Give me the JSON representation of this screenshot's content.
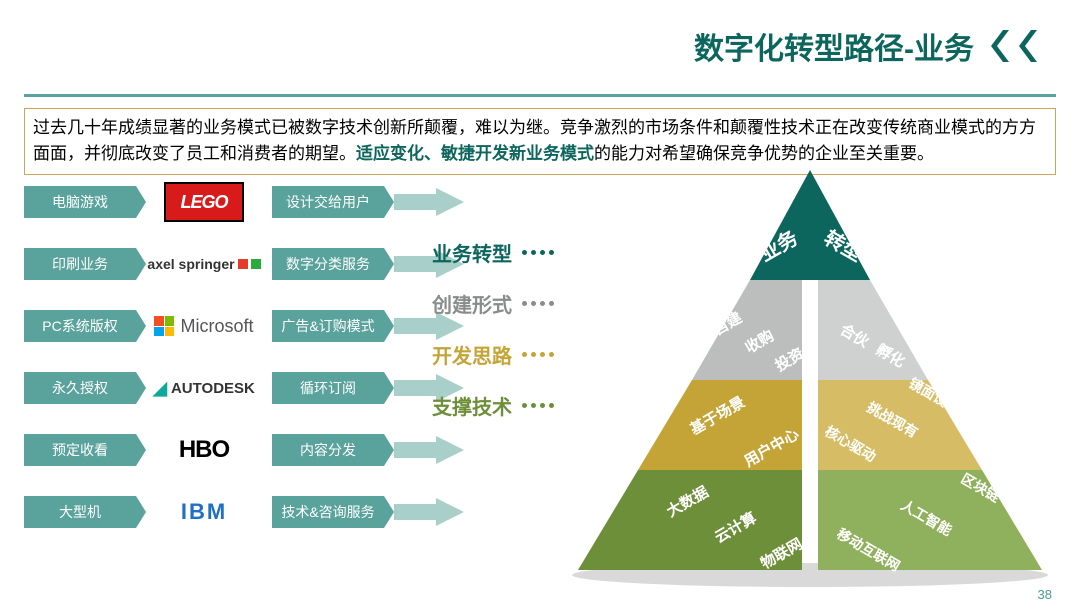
{
  "colors": {
    "teal": "#0c665d",
    "tag_bg": "#5aa39c",
    "arrow_bg": "#a9cfca",
    "hr": "#5aa39c",
    "intro_border": "#c7a85a",
    "intro_hl": "#0c665d",
    "pyr_l0": "#0c665d",
    "pyr_l1_a": "#bcbebe",
    "pyr_l1_b": "#cfd1d1",
    "pyr_l2_a": "#c4a436",
    "pyr_l2_b": "#d6bd65",
    "pyr_l3_a": "#6e8f3a",
    "pyr_l3_b": "#8fb05c",
    "label0": "#0c665d",
    "label1": "#8a8c8c",
    "label2": "#c4a436",
    "label3": "#6e8f3a"
  },
  "title": "数字化转型路径-业务",
  "page_number": "38",
  "intro": {
    "pre": "过去几十年成绩显著的业务模式已被数字技术创新所颠覆，难以为继。竞争激烈的市场条件和颠覆性技术正在改变传统商业模式的方方面面，并彻底改变了员工和消费者的期望。",
    "hl": "适应变化、敏捷开发新业务模式",
    "post": "的能力对希望确保竞争优势的企业至关重要。"
  },
  "rows": [
    {
      "left": "电脑游戏",
      "logo": "LEGO",
      "right": "设计交给用户"
    },
    {
      "left": "印刷业务",
      "logo": "axel springer",
      "right": "数字分类服务"
    },
    {
      "left": "PC系统版权",
      "logo": "Microsoft",
      "right": "广告&订购模式"
    },
    {
      "left": "永久授权",
      "logo": "AUTODESK",
      "right": "循环订阅"
    },
    {
      "left": "预定收看",
      "logo": "HBO",
      "right": "内容分发"
    },
    {
      "left": "大型机",
      "logo": "IBM",
      "right": "技术&咨询服务"
    }
  ],
  "labels": [
    "业务转型",
    "创建形式",
    "开发思路",
    "支撑技术"
  ],
  "pyramid": {
    "l0": [
      "业务",
      "转型"
    ],
    "l1": [
      [
        "自建",
        "收购",
        "投资"
      ],
      [
        "合伙",
        "孵化"
      ]
    ],
    "l2": [
      [
        "基于场景",
        "用户中心"
      ],
      [
        "核心驱动",
        "挑战现有",
        "镜面设计"
      ]
    ],
    "l3": [
      [
        "大数据",
        "云计算",
        "物联网"
      ],
      [
        "移动互联网",
        "人工智能",
        "区块链"
      ]
    ]
  }
}
